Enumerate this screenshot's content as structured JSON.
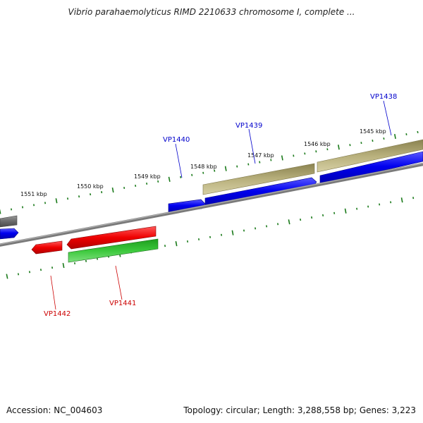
{
  "title": "Vibrio parahaemolyticus RIMD 2210633 chromosome I, complete ...",
  "footer": {
    "accession": "Accession: NC_004603",
    "topology": "Topology: circular; Length: 3,288,558 bp; Genes: 3,223"
  },
  "ruler": {
    "labels": [
      "1545 kbp",
      "1546 kbp",
      "1547 kbp",
      "1548 kbp",
      "1549 kbp",
      "1550 kbp",
      "1551 kbp"
    ]
  },
  "genes": {
    "vp1438": "VP1438",
    "vp1439": "VP1439",
    "vp1440": "VP1440",
    "vp1441": "VP1441",
    "vp1442": "VP1442"
  },
  "colors": {
    "backbone": "#808080",
    "tick": "#1a7a1a",
    "forward_label": "#0000cc",
    "reverse_label": "#cc0000",
    "blue_feature": "#0000dd",
    "khaki_feature": "#b5ad7a",
    "red_feature": "#e60000",
    "green_feature": "#2eb82e",
    "gray_feature": "#6e6e6e"
  }
}
